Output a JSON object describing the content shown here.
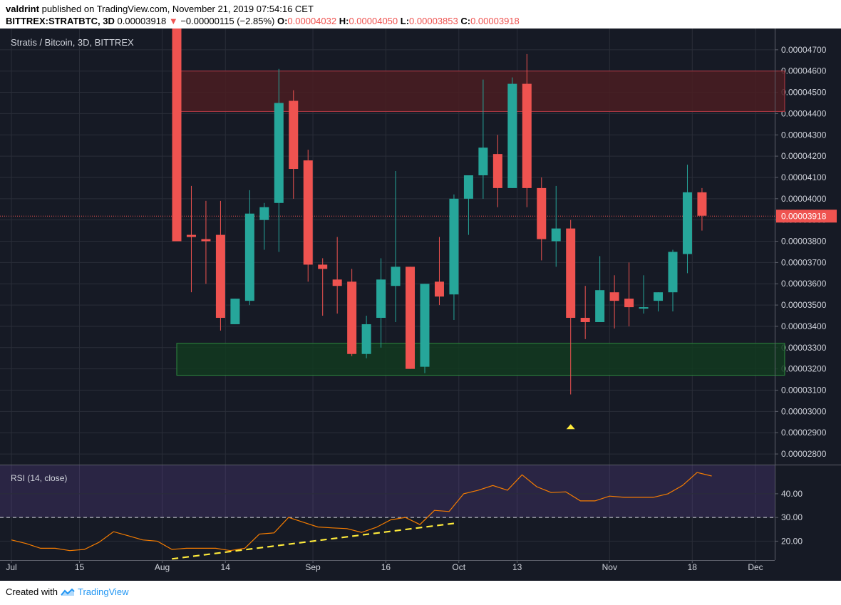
{
  "header": {
    "author": "valdrint",
    "published": "published on TradingView.com, November 21, 2019 07:54:16 CET"
  },
  "quote": {
    "symbol": "BITTREX:STRATBTC, 3D",
    "last": "0.00003918",
    "change": "−0.00000115 (−2.85%)",
    "o_label": "O:",
    "o": "0.00004032",
    "h_label": "H:",
    "h": "0.00004050",
    "l_label": "L:",
    "l": "0.00003853",
    "c_label": "C:",
    "c": "0.00003918"
  },
  "footer": {
    "created": "Created with",
    "brand": "TradingView"
  },
  "colors": {
    "up": "#26a69a",
    "down": "#ef5350",
    "bg": "#161a25",
    "grid": "#2a2e39",
    "axis_text": "#d1d4dc",
    "rsi": "#f57c00",
    "trend": "#ffeb3b",
    "resistance_zone": "#4a1d22",
    "support_zone": "#123a20"
  },
  "chart_data": [
    {
      "type": "candlestick",
      "title": "Stratis / Bitcoin, 3D, BITTREX",
      "ylim": [
        2.75e-05,
        4.8e-05
      ],
      "price_ticks": [
        "0.00002800",
        "0.00002900",
        "0.00003000",
        "0.00003100",
        "0.00003200",
        "0.00003300",
        "0.00003400",
        "0.00003500",
        "0.00003600",
        "0.00003700",
        "0.00003800",
        "0.00003900",
        "0.00004000",
        "0.00004100",
        "0.00004200",
        "0.00004300",
        "0.00004400",
        "0.00004500",
        "0.00004600",
        "0.00004700"
      ],
      "last_price_label": "0.00003918",
      "last_price": 3.918e-05,
      "x_tick_labels": [
        {
          "label": "Jul",
          "date": "2019-07-01"
        },
        {
          "label": "15",
          "date": "2019-07-15"
        },
        {
          "label": "Aug",
          "date": "2019-08-01"
        },
        {
          "label": "14",
          "date": "2019-08-14"
        },
        {
          "label": "Sep",
          "date": "2019-09-01"
        },
        {
          "label": "16",
          "date": "2019-09-16"
        },
        {
          "label": "Oct",
          "date": "2019-10-01"
        },
        {
          "label": "13",
          "date": "2019-10-13"
        },
        {
          "label": "Nov",
          "date": "2019-11-01"
        },
        {
          "label": "18",
          "date": "2019-11-18"
        },
        {
          "label": "Dec",
          "date": "2019-12-01"
        }
      ],
      "candles": [
        {
          "date": "2019-08-04",
          "open": 5.5e-05,
          "high": 5.6e-05,
          "low": 3.8e-05,
          "close": 3.8e-05
        },
        {
          "date": "2019-08-07",
          "open": 3.83e-05,
          "high": 4.06e-05,
          "low": 3.56e-05,
          "close": 3.82e-05
        },
        {
          "date": "2019-08-10",
          "open": 3.81e-05,
          "high": 3.99e-05,
          "low": 3.6e-05,
          "close": 3.8e-05
        },
        {
          "date": "2019-08-13",
          "open": 3.83e-05,
          "high": 3.99e-05,
          "low": 3.38e-05,
          "close": 3.44e-05
        },
        {
          "date": "2019-08-16",
          "open": 3.41e-05,
          "high": 3.53e-05,
          "low": 3.41e-05,
          "close": 3.53e-05
        },
        {
          "date": "2019-08-19",
          "open": 3.52e-05,
          "high": 4.04e-05,
          "low": 3.5e-05,
          "close": 3.93e-05
        },
        {
          "date": "2019-08-22",
          "open": 3.9e-05,
          "high": 3.98e-05,
          "low": 3.76e-05,
          "close": 3.96e-05
        },
        {
          "date": "2019-08-25",
          "open": 3.98e-05,
          "high": 4.61e-05,
          "low": 3.75e-05,
          "close": 4.45e-05
        },
        {
          "date": "2019-08-28",
          "open": 4.46e-05,
          "high": 4.51e-05,
          "low": 4e-05,
          "close": 4.14e-05
        },
        {
          "date": "2019-08-31",
          "open": 4.18e-05,
          "high": 4.23e-05,
          "low": 3.61e-05,
          "close": 3.69e-05
        },
        {
          "date": "2019-09-03",
          "open": 3.69e-05,
          "high": 3.72e-05,
          "low": 3.45e-05,
          "close": 3.67e-05
        },
        {
          "date": "2019-09-06",
          "open": 3.62e-05,
          "high": 3.82e-05,
          "low": 3.46e-05,
          "close": 3.59e-05
        },
        {
          "date": "2019-09-09",
          "open": 3.61e-05,
          "high": 3.67e-05,
          "low": 3.26e-05,
          "close": 3.27e-05
        },
        {
          "date": "2019-09-12",
          "open": 3.27e-05,
          "high": 3.45e-05,
          "low": 3.25e-05,
          "close": 3.41e-05
        },
        {
          "date": "2019-09-15",
          "open": 3.44e-05,
          "high": 3.72e-05,
          "low": 3.3e-05,
          "close": 3.62e-05
        },
        {
          "date": "2019-09-18",
          "open": 3.59e-05,
          "high": 4.13e-05,
          "low": 3.42e-05,
          "close": 3.68e-05
        },
        {
          "date": "2019-09-21",
          "open": 3.68e-05,
          "high": 3.68e-05,
          "low": 3.2e-05,
          "close": 3.2e-05
        },
        {
          "date": "2019-09-24",
          "open": 3.21e-05,
          "high": 3.6e-05,
          "low": 3.18e-05,
          "close": 3.6e-05
        },
        {
          "date": "2019-09-27",
          "open": 3.61e-05,
          "high": 3.82e-05,
          "low": 3.5e-05,
          "close": 3.54e-05
        },
        {
          "date": "2019-09-30",
          "open": 3.55e-05,
          "high": 4.02e-05,
          "low": 3.43e-05,
          "close": 4e-05
        },
        {
          "date": "2019-10-03",
          "open": 4e-05,
          "high": 4.1e-05,
          "low": 3.83e-05,
          "close": 4.11e-05
        },
        {
          "date": "2019-10-06",
          "open": 4.11e-05,
          "high": 4.56e-05,
          "low": 4e-05,
          "close": 4.24e-05
        },
        {
          "date": "2019-10-09",
          "open": 4.21e-05,
          "high": 4.3e-05,
          "low": 3.96e-05,
          "close": 4.05e-05
        },
        {
          "date": "2019-10-12",
          "open": 4.05e-05,
          "high": 4.57e-05,
          "low": 4.05e-05,
          "close": 4.54e-05
        },
        {
          "date": "2019-10-15",
          "open": 4.54e-05,
          "high": 4.68e-05,
          "low": 3.96e-05,
          "close": 4.05e-05
        },
        {
          "date": "2019-10-18",
          "open": 4.05e-05,
          "high": 4.1e-05,
          "low": 3.71e-05,
          "close": 3.81e-05
        },
        {
          "date": "2019-10-21",
          "open": 3.8e-05,
          "high": 4.06e-05,
          "low": 3.68e-05,
          "close": 3.86e-05
        },
        {
          "date": "2019-10-24",
          "open": 3.86e-05,
          "high": 3.9e-05,
          "low": 3.08e-05,
          "close": 3.44e-05
        },
        {
          "date": "2019-10-27",
          "open": 3.44e-05,
          "high": 3.59e-05,
          "low": 3.34e-05,
          "close": 3.42e-05
        },
        {
          "date": "2019-10-30",
          "open": 3.42e-05,
          "high": 3.73e-05,
          "low": 3.42e-05,
          "close": 3.57e-05
        },
        {
          "date": "2019-11-02",
          "open": 3.56e-05,
          "high": 3.64e-05,
          "low": 3.39e-05,
          "close": 3.52e-05
        },
        {
          "date": "2019-11-05",
          "open": 3.53e-05,
          "high": 3.7e-05,
          "low": 3.4e-05,
          "close": 3.49e-05
        },
        {
          "date": "2019-11-08",
          "open": 3.49e-05,
          "high": 3.64e-05,
          "low": 3.46e-05,
          "close": 3.49e-05
        },
        {
          "date": "2019-11-11",
          "open": 3.52e-05,
          "high": 3.56e-05,
          "low": 3.47e-05,
          "close": 3.56e-05
        },
        {
          "date": "2019-11-14",
          "open": 3.56e-05,
          "high": 3.76e-05,
          "low": 3.47e-05,
          "close": 3.75e-05
        },
        {
          "date": "2019-11-17",
          "open": 3.74e-05,
          "high": 4.16e-05,
          "low": 3.65e-05,
          "close": 4.03e-05
        },
        {
          "date": "2019-11-20",
          "open": 4.03e-05,
          "high": 4.05e-05,
          "low": 3.85e-05,
          "close": 3.92e-05
        }
      ],
      "zones": [
        {
          "kind": "resistance",
          "from_date": "2019-08-04",
          "to_date": "2019-12-07",
          "low": 4.41e-05,
          "high": 4.6e-05
        },
        {
          "kind": "support",
          "from_date": "2019-08-04",
          "to_date": "2019-12-07",
          "low": 3.17e-05,
          "high": 3.32e-05
        }
      ],
      "marker": {
        "date": "2019-10-24",
        "price": 2.93e-05,
        "shape": "up-triangle"
      }
    },
    {
      "type": "line",
      "title": "RSI (14, close)",
      "ylim": [
        12,
        52
      ],
      "y_ticks": [
        "20.00",
        "30.00",
        "40.00"
      ],
      "band": [
        30,
        52
      ],
      "level": 30,
      "x": [
        "2019-07-01",
        "2019-07-04",
        "2019-07-07",
        "2019-07-10",
        "2019-07-13",
        "2019-07-16",
        "2019-07-19",
        "2019-07-22",
        "2019-07-25",
        "2019-07-28",
        "2019-07-31",
        "2019-08-03",
        "2019-08-06",
        "2019-08-09",
        "2019-08-12",
        "2019-08-15",
        "2019-08-18",
        "2019-08-21",
        "2019-08-24",
        "2019-08-27",
        "2019-08-30",
        "2019-09-02",
        "2019-09-05",
        "2019-09-08",
        "2019-09-11",
        "2019-09-14",
        "2019-09-17",
        "2019-09-20",
        "2019-09-23",
        "2019-09-26",
        "2019-09-29",
        "2019-10-02",
        "2019-10-05",
        "2019-10-08",
        "2019-10-11",
        "2019-10-14",
        "2019-10-17",
        "2019-10-20",
        "2019-10-23",
        "2019-10-26",
        "2019-10-29",
        "2019-11-01",
        "2019-11-04",
        "2019-11-07",
        "2019-11-10",
        "2019-11-13",
        "2019-11-16",
        "2019-11-19",
        "2019-11-22"
      ],
      "values": [
        20.5,
        19.0,
        17.0,
        17.0,
        16.0,
        16.5,
        19.5,
        24.0,
        22.3,
        20.5,
        20.0,
        16.5,
        17.0,
        17.0,
        17.0,
        16.0,
        17.0,
        23.0,
        23.5,
        30.0,
        28.0,
        26.0,
        25.6,
        25.3,
        23.7,
        25.8,
        29.0,
        30.0,
        27.0,
        33.0,
        32.5,
        40.0,
        41.5,
        43.5,
        41.5,
        48.0,
        43.0,
        40.5,
        40.8,
        37.0,
        37.0,
        39.0,
        38.5,
        38.5,
        38.5,
        40.0,
        43.5,
        49.0,
        47.5
      ],
      "trendline": [
        {
          "date": "2019-08-03",
          "value": 12.5
        },
        {
          "date": "2019-09-30",
          "value": 27.5
        }
      ]
    }
  ]
}
